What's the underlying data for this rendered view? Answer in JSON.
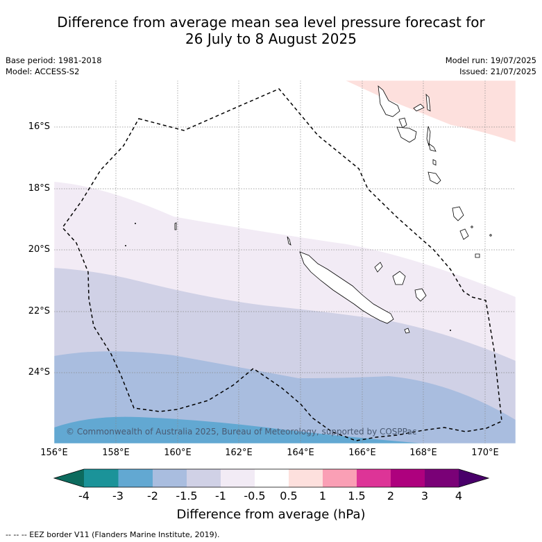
{
  "title_line1": "Difference from average mean sea level pressure forecast for",
  "title_line2": "26 July to 8 August 2025",
  "meta": {
    "base_period": "Base period: 1981-2018",
    "model": "Model: ACCESS-S2",
    "model_run": "Model run: 19/07/2025",
    "issued": "Issued: 21/07/2025"
  },
  "copyright": "© Commonwealth of Australia 2025, Bureau of Meteorology, supported by COSPPac",
  "lat_labels": [
    "16°S",
    "18°S",
    "20°S",
    "22°S",
    "24°S"
  ],
  "lon_labels": [
    "156°E",
    "158°E",
    "160°E",
    "162°E",
    "164°E",
    "166°E",
    "168°E",
    "170°E"
  ],
  "colorbar": {
    "ticks": [
      "-4",
      "-3",
      "-2",
      "-1.5",
      "-1",
      "-0.5",
      "0.5",
      "1",
      "1.5",
      "2",
      "3",
      "4"
    ],
    "colors": {
      "under": "#0d6b5e",
      "b1": "#1b9399",
      "b2": "#62a8d2",
      "b3": "#a9bddf",
      "b4": "#d0d1e6",
      "b5": "#f2ebf5",
      "b6": "#ffffff",
      "b7": "#fde0dd",
      "b8": "#fa9fb5",
      "b9": "#dd3497",
      "b10": "#ae017e",
      "b11": "#7a0177",
      "over": "#49006a"
    },
    "title": "Difference from average (hPa)"
  },
  "footnote": "-- -- -- EEZ border V11 (Flanders Marine Institute, 2019)."
}
